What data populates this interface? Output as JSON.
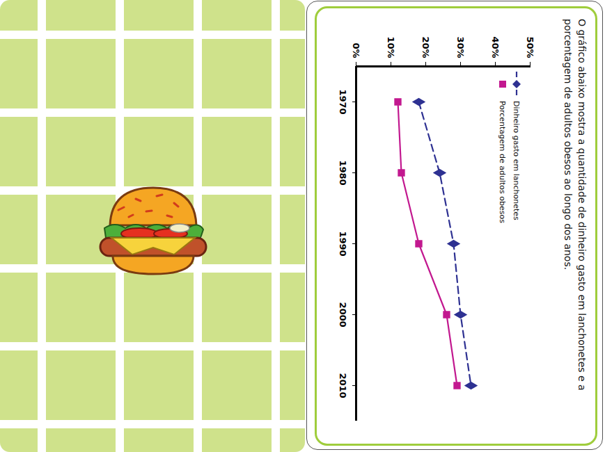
{
  "chart_data": {
    "type": "line",
    "title": "O gráfico abaixo mostra a quantidade de dinheiro gasto em lanchonetes e a porcentagem de adultos obesos ao longo dos anos.",
    "x": [
      1970,
      1980,
      1990,
      2000,
      2010
    ],
    "xlim": [
      1965,
      2015
    ],
    "xticks": [
      1970,
      1980,
      1990,
      2000,
      2010
    ],
    "ylim": [
      0,
      50
    ],
    "yticks": [
      {
        "value": 0,
        "label": "0%"
      },
      {
        "value": 10,
        "label": "10%"
      },
      {
        "value": 20,
        "label": "20%"
      },
      {
        "value": 30,
        "label": "30%"
      },
      {
        "value": 40,
        "label": "40%"
      },
      {
        "value": 50,
        "label": "50%"
      }
    ],
    "grid": false,
    "legend": "top-left",
    "series": [
      {
        "name": "Dinheiro gasto em lanchonetes",
        "color": "#2e3192",
        "marker": "diamond",
        "line_style": "dashed",
        "values": [
          18,
          24,
          28,
          30,
          33
        ]
      },
      {
        "name": "Porcentagem de adultos obesos",
        "color": "#c2188f",
        "marker": "square",
        "line_style": "solid",
        "values": [
          12,
          13,
          18,
          26,
          29
        ]
      }
    ]
  }
}
